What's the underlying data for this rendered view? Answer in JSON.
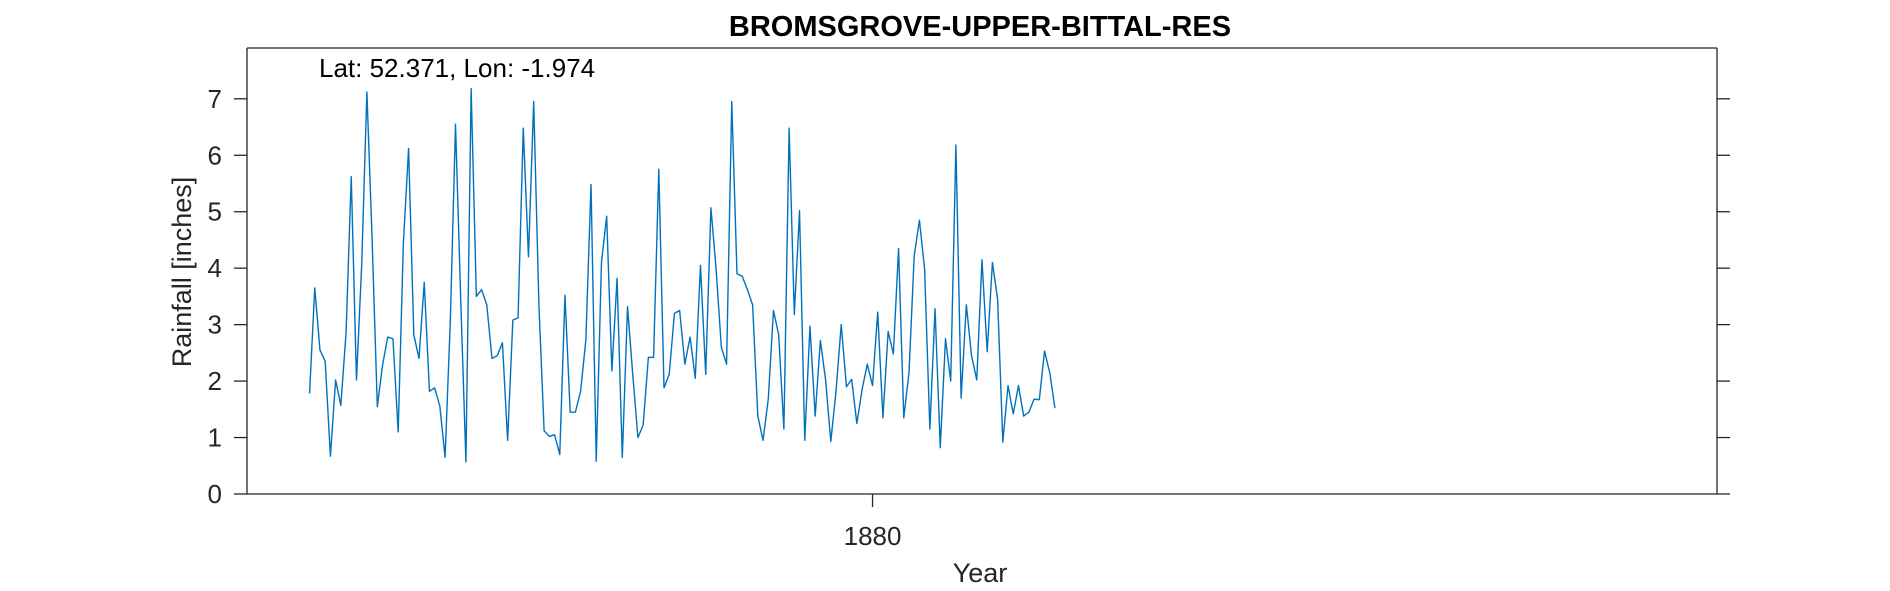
{
  "chart_data": {
    "type": "line",
    "title": "BROMSGROVE-UPPER-BITTAL-RES",
    "annotation": "Lat: 52.371, Lon: -1.974",
    "xlabel": "Year",
    "ylabel": "Rainfall [inches]",
    "xticks": [
      1880
    ],
    "yticks": [
      0,
      1,
      2,
      3,
      4,
      5,
      6,
      7
    ],
    "xlim": [
      1870.0,
      1893.5
    ],
    "ylim": [
      0,
      7.9
    ],
    "grid": false,
    "color": "#0072BD",
    "series": [
      {
        "x_start": 1871.0,
        "x_step": 0.08333,
        "values": [
          1.78,
          3.65,
          2.55,
          2.35,
          0.67,
          2.02,
          1.57,
          2.85,
          5.62,
          2.02,
          4.05,
          7.12,
          4.52,
          1.55,
          2.28,
          2.78,
          2.75,
          1.1,
          4.45,
          6.12,
          2.82,
          2.4,
          3.75,
          1.82,
          1.88,
          1.55,
          0.65,
          3.05,
          6.55,
          3.45,
          0.57,
          7.18,
          3.5,
          3.62,
          3.35,
          2.4,
          2.45,
          2.68,
          0.95,
          3.08,
          3.12,
          6.48,
          4.2,
          6.95,
          3.35,
          1.12,
          1.02,
          1.05,
          0.7,
          3.52,
          1.45,
          1.45,
          1.82,
          2.72,
          5.48,
          0.58,
          4.1,
          4.92,
          2.18,
          3.82,
          0.65,
          3.32,
          2.12,
          1.0,
          1.22,
          2.42,
          2.42,
          5.75,
          1.88,
          2.12,
          3.2,
          3.25,
          2.3,
          2.78,
          2.05,
          4.05,
          2.12,
          5.07,
          3.98,
          2.6,
          2.3,
          6.95,
          3.9,
          3.86,
          3.62,
          3.35,
          1.38,
          0.95,
          1.68,
          3.25,
          2.82,
          1.15,
          6.48,
          3.18,
          5.02,
          0.95,
          2.97,
          1.38,
          2.72,
          2.02,
          0.93,
          1.82,
          3.0,
          1.9,
          2.03,
          1.25,
          1.85,
          2.3,
          1.92,
          3.22,
          1.35,
          2.88,
          2.48,
          4.35,
          1.35,
          2.15,
          4.22,
          4.85,
          3.98,
          1.15,
          3.28,
          0.82,
          2.75,
          2.0,
          6.18,
          1.7,
          3.35,
          2.45,
          2.02,
          4.15,
          2.52,
          4.1,
          3.45,
          0.92,
          1.92,
          1.42,
          1.92,
          1.38,
          1.45,
          1.68,
          1.67,
          2.53,
          2.15,
          1.52
        ]
      }
    ]
  }
}
